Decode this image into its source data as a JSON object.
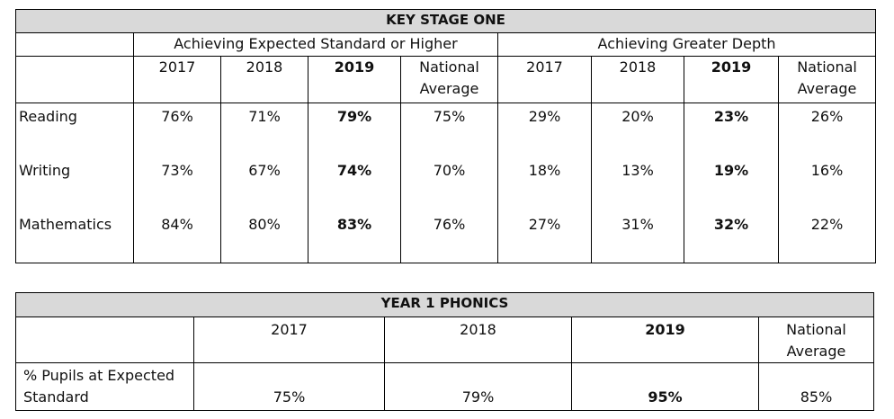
{
  "ks1": {
    "title": "KEY STAGE ONE",
    "group_expected": "Achieving Expected Standard or Higher",
    "group_greater": "Achieving Greater Depth",
    "years": [
      "2017",
      "2018",
      "2019"
    ],
    "national_average": [
      "National",
      "Average"
    ],
    "rows": [
      {
        "subject": "Reading",
        "expected": [
          "76%",
          "71%",
          "79%",
          "75%"
        ],
        "greater": [
          "29%",
          "20%",
          "23%",
          "26%"
        ]
      },
      {
        "subject": "Writing",
        "expected": [
          "73%",
          "67%",
          "74%",
          "70%"
        ],
        "greater": [
          "18%",
          "13%",
          "19%",
          "16%"
        ]
      },
      {
        "subject": "Mathematics",
        "expected": [
          "84%",
          "80%",
          "83%",
          "76%"
        ],
        "greater": [
          "27%",
          "31%",
          "32%",
          "22%"
        ]
      }
    ]
  },
  "phonics": {
    "title": "YEAR 1 PHONICS",
    "years": [
      "2017",
      "2018",
      "2019"
    ],
    "national_average": [
      "National",
      "Average"
    ],
    "row_label": [
      "% Pupils at Expected",
      "Standard"
    ],
    "values": [
      "75%",
      "79%",
      "95%",
      "85%"
    ]
  }
}
